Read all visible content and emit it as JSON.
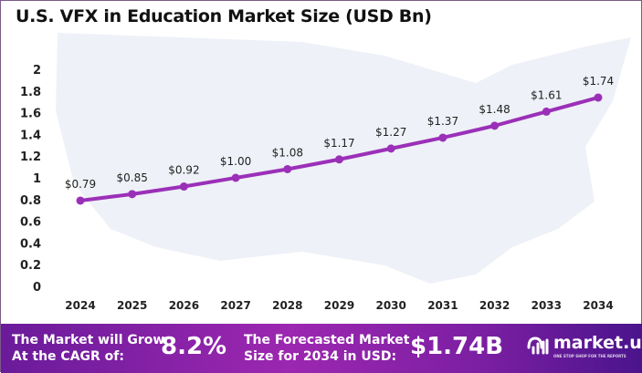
{
  "chart_data": {
    "type": "line",
    "title": "U.S. VFX in Education Market Size (USD Bn)",
    "categories": [
      "2024",
      "2025",
      "2026",
      "2027",
      "2028",
      "2029",
      "2030",
      "2031",
      "2032",
      "2033",
      "2034"
    ],
    "values": [
      0.79,
      0.85,
      0.92,
      1.0,
      1.08,
      1.17,
      1.27,
      1.37,
      1.48,
      1.61,
      1.74
    ],
    "data_labels": [
      "$0.79",
      "$0.85",
      "$0.92",
      "$1.00",
      "$1.08",
      "$1.17",
      "$1.27",
      "$1.37",
      "$1.48",
      "$1.61",
      "$1.74"
    ],
    "yticks": [
      "0",
      "0.2",
      "0.4",
      "0.6",
      "0.8",
      "1",
      "1.2",
      "1.4",
      "1.6",
      "1.8",
      "2"
    ],
    "ylim": [
      0,
      2
    ],
    "grid": false,
    "line_color": "#9b30b8"
  },
  "footer": {
    "cagr_text_1": "The Market will Grow",
    "cagr_text_2": "At the CAGR of:",
    "cagr_value": "8.2%",
    "forecast_text_1": "The Forecasted Market",
    "forecast_text_2": "Size for 2034 in USD:",
    "forecast_value": "$1.74B",
    "logo_name": "market.us",
    "logo_tagline": "ONE STOP SHOP FOR THE REPORTS"
  }
}
